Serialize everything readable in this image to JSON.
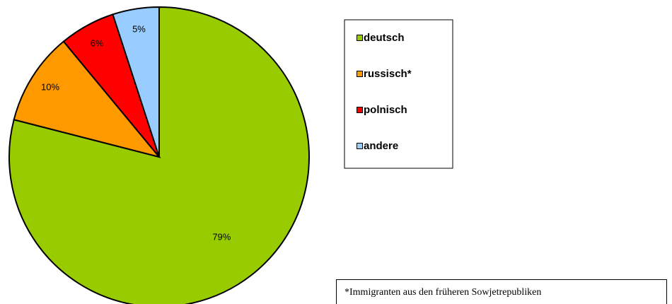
{
  "chart_data": {
    "type": "pie",
    "categories": [
      "deutsch",
      "russisch*",
      "polnisch",
      "andere"
    ],
    "values": [
      79,
      10,
      6,
      5
    ],
    "value_labels": [
      "79%",
      "10%",
      "6%",
      "5%"
    ],
    "colors": [
      "#99cc00",
      "#ff9900",
      "#ff0000",
      "#99ccff"
    ],
    "legend": "right",
    "annotation": "*Immigranten aus den früheren Sowjetrepubliken"
  }
}
